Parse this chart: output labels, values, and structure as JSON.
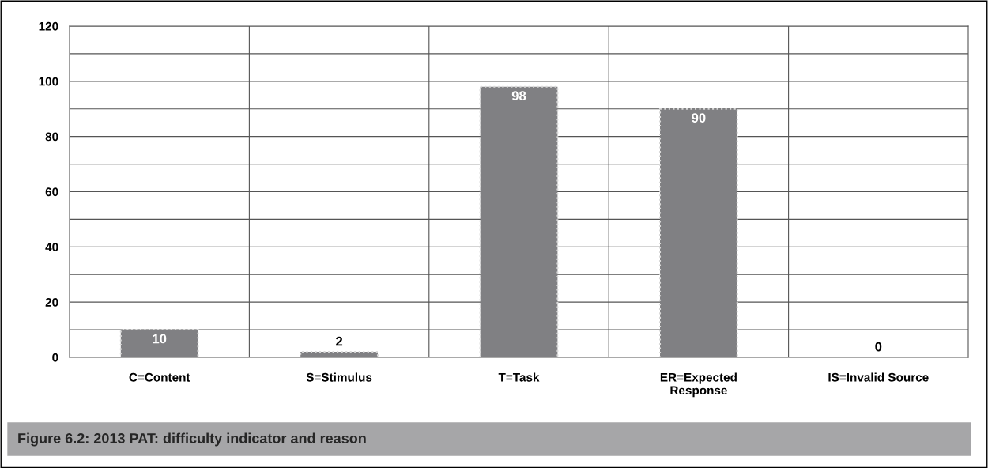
{
  "chart_data": {
    "type": "bar",
    "title": "Figure 6.2: 2013 PAT: difficulty indicator and reason",
    "categories": [
      "C=Content",
      "S=Stimulus",
      "T=Task",
      "ER=Expected\nResponse",
      "IS=Invalid Source"
    ],
    "values": [
      10,
      2,
      98,
      90,
      0
    ],
    "color": "#808083",
    "ylim": [
      0,
      120
    ],
    "yticks": [
      0,
      {
        "value": 10,
        "label": null
      },
      20,
      {
        "value": 30,
        "label": null
      },
      40,
      {
        "value": 50,
        "label": null
      },
      60,
      {
        "value": 70,
        "label": null
      },
      80,
      {
        "value": 90,
        "label": null
      },
      100,
      {
        "value": 110,
        "label": null
      },
      120
    ],
    "grid": true,
    "data_labels": true
  }
}
